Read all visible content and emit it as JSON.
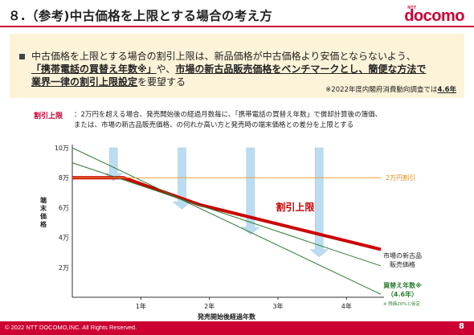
{
  "header": {
    "title": "８.（参考)中古価格を上限とする場合の考え方",
    "logo_ntt": "NTT",
    "logo_text": "docomo"
  },
  "summary": {
    "line1": "中古価格を上限とする場合の割引上限は、新品価格が中古価格より安価とならないよう、",
    "line2_emph1": "「携帯電話の買替え年数※」",
    "line2_plain": "や、",
    "line2_emph2": "市場の新古品販売価格をベンチマークとし、簡便な方法で",
    "line3_emph": "業界一律の割引上限設定",
    "line3_plain": "を要望する",
    "note_prefix": "※2022年度内閣府消費動向調査では",
    "note_value": "4.6年"
  },
  "definition": {
    "label": "割引上限",
    "text_line1": "：2万円を超える場合、発売開始後の経過月数毎に、「携帯電話の買替え年数」で償却計算後の簿価、",
    "text_line2": "または、市場の新古品販売価格、の何れか高い方と発売時の端末価格との差分を上限とする"
  },
  "chart_data": {
    "type": "line",
    "xlabel": "発売開始後経過年数",
    "ylabel": "端末価格",
    "x_ticks": [
      "1年",
      "2年",
      "3年",
      "4年"
    ],
    "y_ticks": [
      "10万",
      "8万",
      "6万",
      "4万",
      "2万"
    ],
    "xlim": [
      0,
      4.5
    ],
    "ylim": [
      0,
      10
    ],
    "series": [
      {
        "name": "割引上限",
        "color": "#cc0000",
        "points": [
          [
            0,
            8
          ],
          [
            0.75,
            8
          ],
          [
            1.85,
            6.2
          ],
          [
            4.5,
            3.2
          ]
        ]
      },
      {
        "name": "市場の新古品販売価格",
        "color": "#2e7d32",
        "points": [
          [
            0,
            9
          ],
          [
            4.5,
            2.1
          ]
        ]
      },
      {
        "name": "買替え年数※（4.6年）",
        "color": "#2e7d32",
        "points": [
          [
            0,
            10
          ],
          [
            4.5,
            0.2
          ]
        ]
      },
      {
        "name": "2万円割引",
        "color": "#e8a13a",
        "points": [
          [
            0,
            8
          ],
          [
            4.5,
            8
          ]
        ]
      }
    ],
    "arrows_at_x": [
      0.6,
      1.6,
      2.6,
      3.6
    ],
    "labels": {
      "discount_cap": "割引上限",
      "two_man": "2万円割引",
      "shinko_line1": "市場の新古品",
      "shinko_line2": "販売価格",
      "replace_line1": "買替え年数※",
      "replace_line2": "（4.6年）",
      "residual_note": "※ 残価20%と仮定"
    }
  },
  "footer": {
    "copyright": "© 2022 NTT DOCOMO,INC. All Rights Reserved.",
    "page": "8"
  }
}
